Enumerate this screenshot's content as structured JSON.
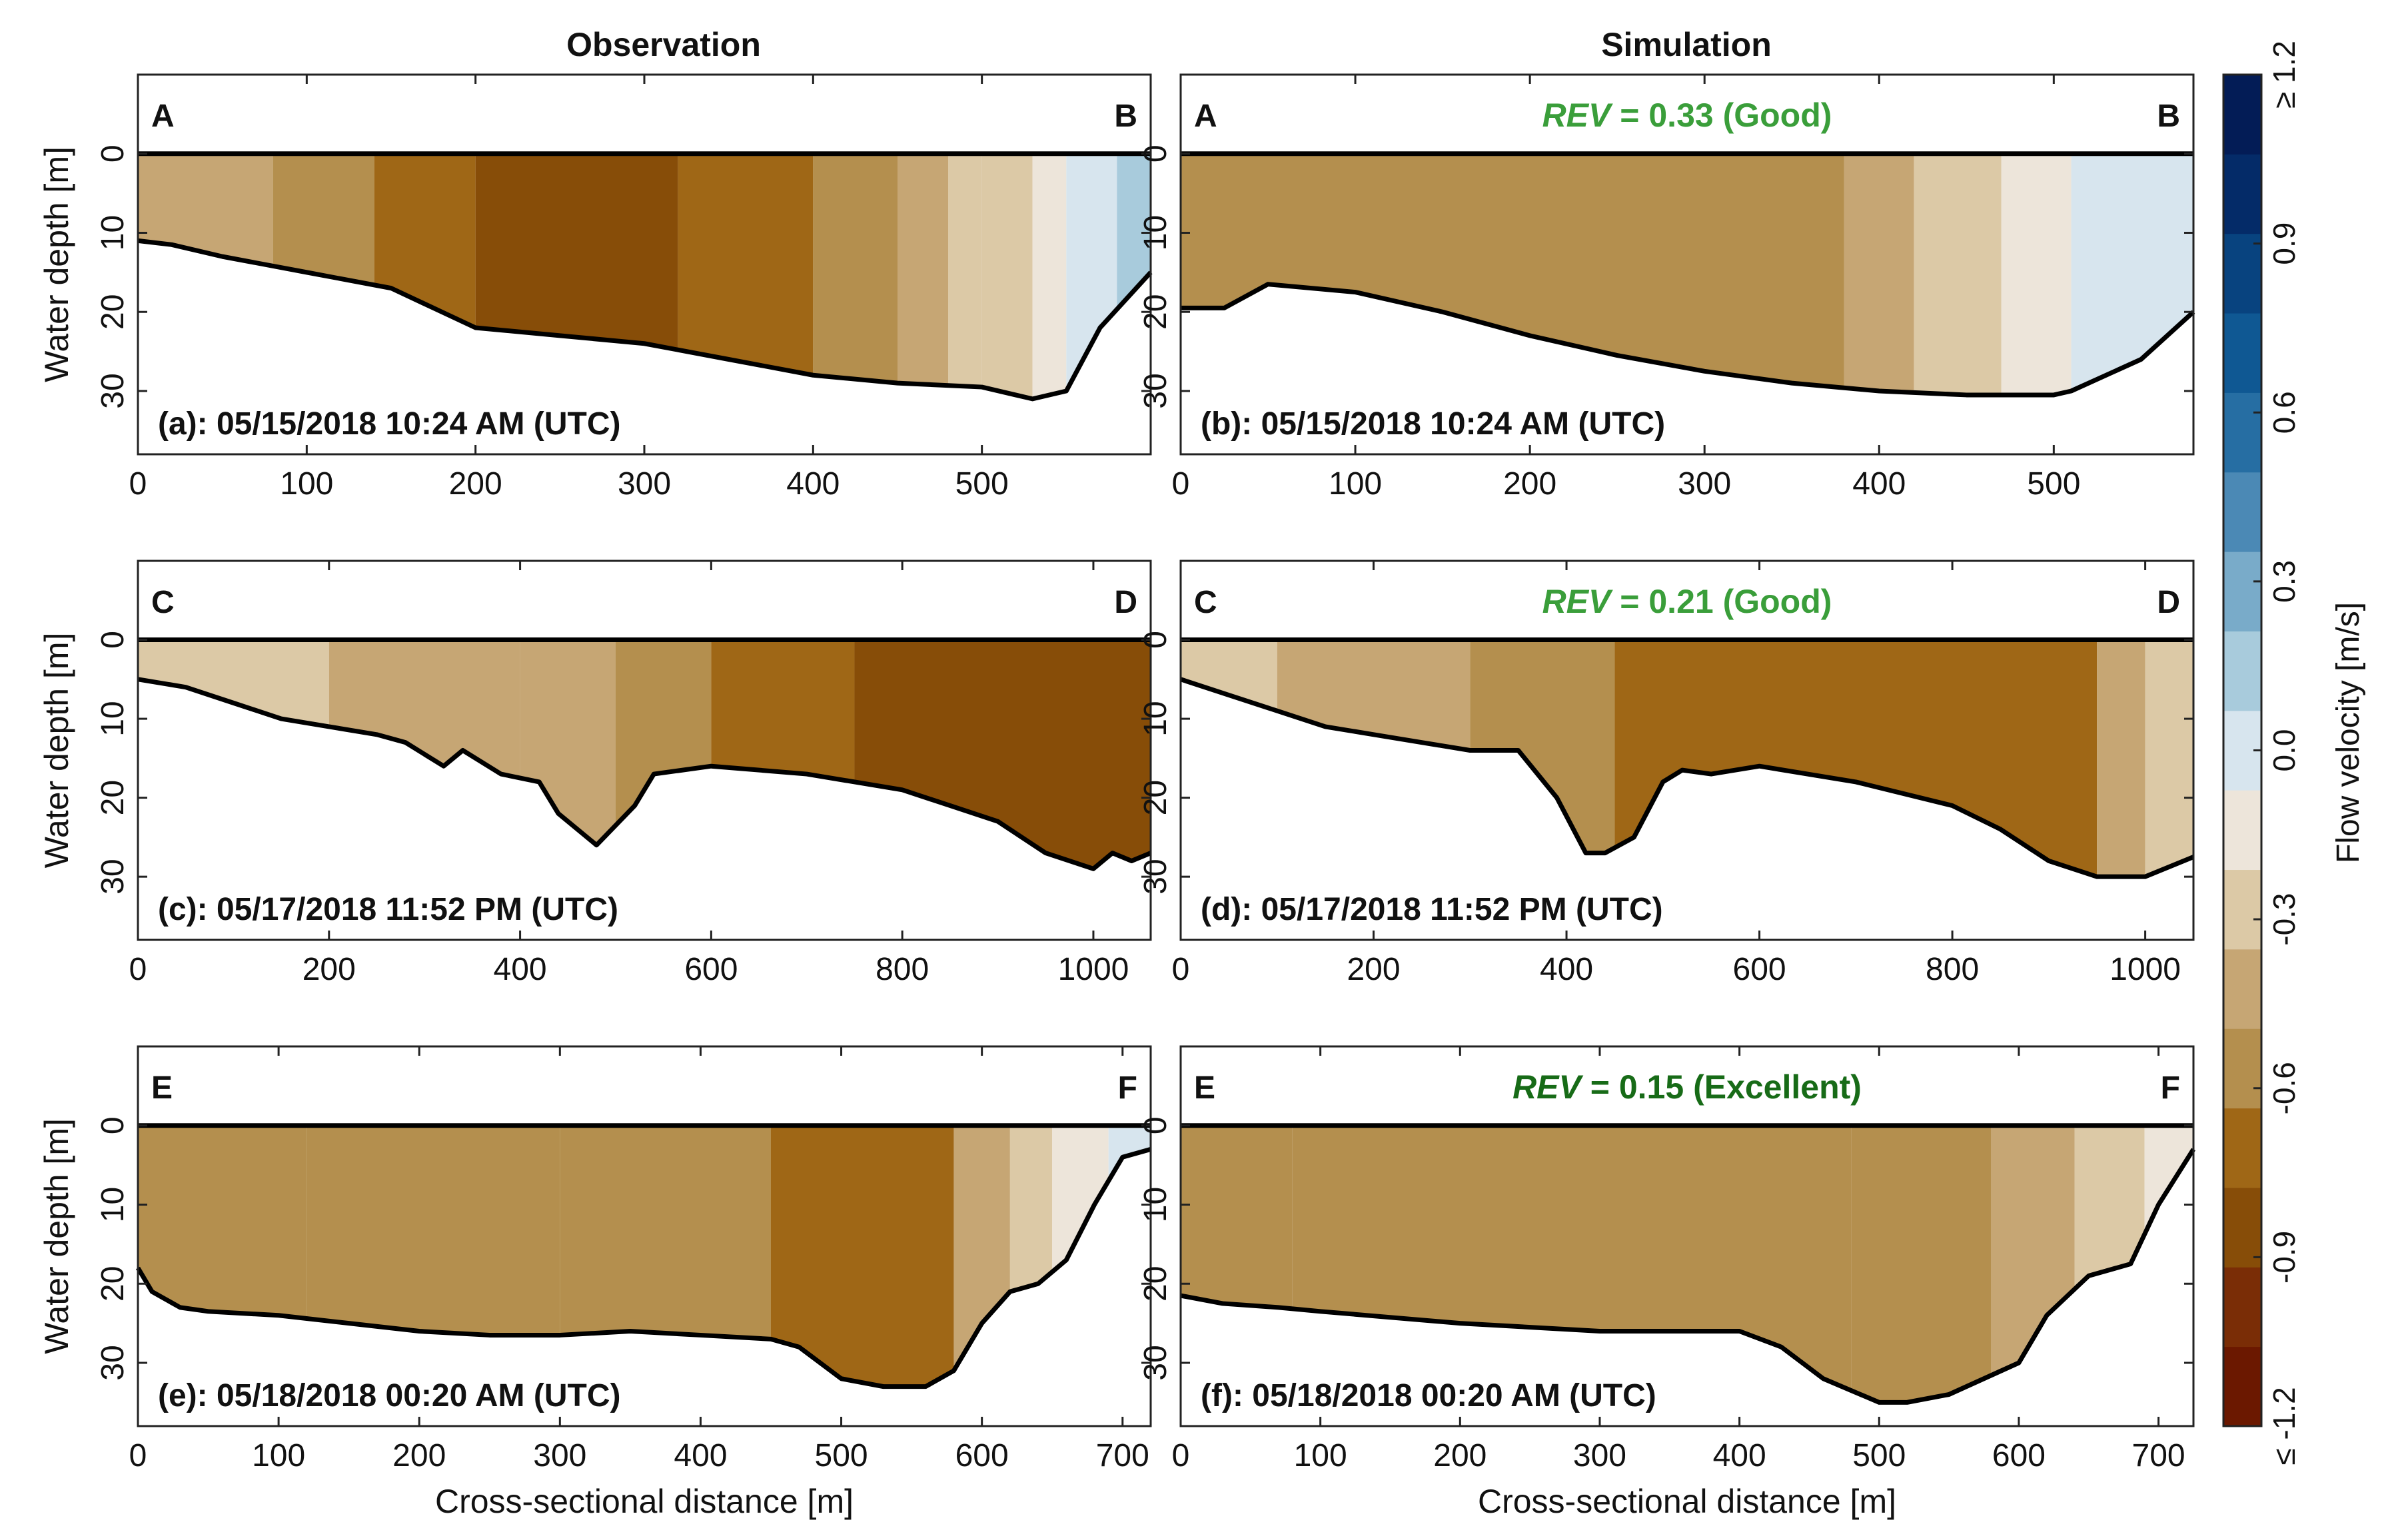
{
  "figure": {
    "col_titles": [
      "Observation",
      "Simulation"
    ],
    "colorbar": {
      "label": "Flow velocity [m/s]",
      "ticks": [
        "≤ -1.2",
        "-0.9",
        "-0.6",
        "-0.3",
        "0.0",
        "0.3",
        "0.6",
        "0.9",
        "≥ 1.2"
      ],
      "colors": [
        "#6b1800",
        "#7a2d06",
        "#874d08",
        "#9f6716",
        "#b48f4e",
        "#c6a674",
        "#dcc9a6",
        "#ede5da",
        "#d7e5ee",
        "#a8cbdc",
        "#79abc9",
        "#4b89b5",
        "#266ea3",
        "#0f5893",
        "#08437f",
        "#042b68",
        "#031c56"
      ]
    }
  },
  "chart_data": [
    {
      "type": "heatmap",
      "id": "a",
      "column": "Observation",
      "title": "(a): 05/15/2018 10:24 AM (UTC)",
      "left_label": "A",
      "right_label": "B",
      "xlabel": "",
      "ylabel": "Water depth [m]",
      "xlim": [
        0,
        600
      ],
      "ylim": [
        38,
        -10
      ],
      "xticks": [
        "0",
        "100",
        "200",
        "300",
        "400",
        "500"
      ],
      "yticks": [
        "0",
        "10",
        "20",
        "30"
      ],
      "bed": {
        "x": [
          0,
          20,
          50,
          100,
          150,
          180,
          200,
          250,
          300,
          350,
          400,
          450,
          500,
          530,
          550,
          570,
          600
        ],
        "depth": [
          11,
          11.5,
          13,
          15,
          17,
          20,
          22,
          23,
          24,
          26,
          28,
          29,
          29.5,
          31,
          30,
          22,
          15
        ]
      },
      "zones": [
        {
          "x0": 0,
          "x1": 80,
          "v": -0.45
        },
        {
          "x0": 80,
          "x1": 140,
          "v": -0.55
        },
        {
          "x0": 140,
          "x1": 200,
          "v": -0.65
        },
        {
          "x0": 200,
          "x1": 320,
          "v": -0.85
        },
        {
          "x0": 320,
          "x1": 400,
          "v": -0.65
        },
        {
          "x0": 400,
          "x1": 450,
          "v": -0.55
        },
        {
          "x0": 450,
          "x1": 480,
          "v": -0.45
        },
        {
          "x0": 480,
          "x1": 500,
          "v": -0.35
        },
        {
          "x0": 500,
          "x1": 530,
          "v": -0.25
        },
        {
          "x0": 530,
          "x1": 550,
          "v": -0.1
        },
        {
          "x0": 550,
          "x1": 580,
          "v": 0.05
        },
        {
          "x0": 580,
          "x1": 600,
          "v": 0.2
        }
      ]
    },
    {
      "type": "heatmap",
      "id": "b",
      "column": "Simulation",
      "title": "(b): 05/15/2018 10:24 AM (UTC)",
      "left_label": "A",
      "right_label": "B",
      "rev_prefix": "REV",
      "rev_text": " = 0.33 (Good)",
      "rev_color": "#3a9e3a",
      "xlabel": "",
      "ylabel": "",
      "xlim": [
        0,
        580
      ],
      "ylim": [
        38,
        -10
      ],
      "xticks": [
        "0",
        "100",
        "200",
        "300",
        "400",
        "500"
      ],
      "yticks": [
        "0",
        "10",
        "20",
        "30"
      ],
      "bed": {
        "x": [
          0,
          25,
          50,
          100,
          150,
          200,
          250,
          300,
          350,
          400,
          450,
          500,
          510,
          550,
          580
        ],
        "depth": [
          19.5,
          19.5,
          16.5,
          17.5,
          20,
          23,
          25.5,
          27.5,
          29,
          30,
          30.5,
          30.5,
          30,
          26,
          20
        ]
      },
      "zones": [
        {
          "x0": 0,
          "x1": 380,
          "v": -0.5
        },
        {
          "x0": 380,
          "x1": 420,
          "v": -0.4
        },
        {
          "x0": 420,
          "x1": 470,
          "v": -0.3
        },
        {
          "x0": 470,
          "x1": 510,
          "v": -0.1
        },
        {
          "x0": 510,
          "x1": 580,
          "v": 0.05
        }
      ]
    },
    {
      "type": "heatmap",
      "id": "c",
      "column": "Observation",
      "title": "(c): 05/17/2018 11:52 PM (UTC)",
      "left_label": "C",
      "right_label": "D",
      "xlabel": "",
      "ylabel": "Water depth [m]",
      "xlim": [
        0,
        1060
      ],
      "ylim": [
        38,
        -10
      ],
      "xticks": [
        "0",
        "200",
        "400",
        "600",
        "800",
        "1000"
      ],
      "yticks": [
        "0",
        "10",
        "20",
        "30"
      ],
      "bed": {
        "x": [
          0,
          50,
          100,
          150,
          200,
          250,
          280,
          320,
          340,
          380,
          420,
          440,
          480,
          520,
          540,
          600,
          700,
          800,
          850,
          900,
          950,
          1000,
          1020,
          1040,
          1060
        ],
        "depth": [
          5,
          6,
          8,
          10,
          11,
          12,
          13,
          16,
          14,
          17,
          18,
          22,
          26,
          21,
          17,
          16,
          17,
          19,
          21,
          23,
          27,
          29,
          27,
          28,
          27
        ]
      },
      "zones": [
        {
          "x0": 0,
          "x1": 200,
          "v": -0.35
        },
        {
          "x0": 200,
          "x1": 400,
          "v": -0.4
        },
        {
          "x0": 400,
          "x1": 500,
          "v": -0.45
        },
        {
          "x0": 500,
          "x1": 600,
          "v": -0.55
        },
        {
          "x0": 600,
          "x1": 750,
          "v": -0.65
        },
        {
          "x0": 750,
          "x1": 1060,
          "v": -0.8
        }
      ]
    },
    {
      "type": "heatmap",
      "id": "d",
      "column": "Simulation",
      "title": "(d): 05/17/2018 11:52 PM (UTC)",
      "left_label": "C",
      "right_label": "D",
      "rev_prefix": "REV",
      "rev_text": " = 0.21 (Good)",
      "rev_color": "#3a9e3a",
      "xlabel": "",
      "ylabel": "",
      "xlim": [
        0,
        1050
      ],
      "ylim": [
        38,
        -10
      ],
      "xticks": [
        "0",
        "200",
        "400",
        "600",
        "800",
        "1000"
      ],
      "yticks": [
        "0",
        "10",
        "20",
        "30"
      ],
      "bed": {
        "x": [
          0,
          50,
          100,
          150,
          200,
          250,
          300,
          350,
          390,
          420,
          440,
          470,
          500,
          520,
          550,
          600,
          700,
          800,
          850,
          900,
          950,
          1000,
          1050
        ],
        "depth": [
          5,
          7,
          9,
          11,
          12,
          13,
          14,
          14,
          20,
          27,
          27,
          25,
          18,
          16.5,
          17,
          16,
          18,
          21,
          24,
          28,
          30,
          30,
          27.5
        ]
      },
      "zones": [
        {
          "x0": 0,
          "x1": 100,
          "v": -0.35
        },
        {
          "x0": 100,
          "x1": 300,
          "v": -0.45
        },
        {
          "x0": 300,
          "x1": 450,
          "v": -0.55
        },
        {
          "x0": 450,
          "x1": 950,
          "v": -0.65
        },
        {
          "x0": 950,
          "x1": 1000,
          "v": -0.45
        },
        {
          "x0": 1000,
          "x1": 1050,
          "v": -0.3
        }
      ]
    },
    {
      "type": "heatmap",
      "id": "e",
      "column": "Observation",
      "title": "(e): 05/18/2018 00:20 AM (UTC)",
      "left_label": "E",
      "right_label": "F",
      "xlabel": "Cross-sectional distance [m]",
      "ylabel": "Water depth [m]",
      "xlim": [
        0,
        720
      ],
      "ylim": [
        38,
        -10
      ],
      "xticks": [
        "0",
        "100",
        "200",
        "300",
        "400",
        "500",
        "600",
        "700"
      ],
      "yticks": [
        "0",
        "10",
        "20",
        "30"
      ],
      "bed": {
        "x": [
          0,
          10,
          30,
          50,
          100,
          150,
          200,
          250,
          300,
          350,
          400,
          450,
          470,
          500,
          530,
          560,
          580,
          600,
          620,
          640,
          660,
          680,
          700,
          720
        ],
        "depth": [
          18,
          21,
          23,
          23.5,
          24,
          25,
          26,
          26.5,
          26.5,
          26,
          26.5,
          27,
          28,
          32,
          33,
          33,
          31,
          25,
          21,
          20,
          17,
          10,
          4,
          3
        ]
      },
      "zones": [
        {
          "x0": 0,
          "x1": 120,
          "v": -0.5
        },
        {
          "x0": 120,
          "x1": 300,
          "v": -0.55
        },
        {
          "x0": 300,
          "x1": 450,
          "v": -0.55
        },
        {
          "x0": 450,
          "x1": 580,
          "v": -0.65
        },
        {
          "x0": 580,
          "x1": 620,
          "v": -0.45
        },
        {
          "x0": 620,
          "x1": 650,
          "v": -0.3
        },
        {
          "x0": 650,
          "x1": 690,
          "v": -0.1
        },
        {
          "x0": 690,
          "x1": 720,
          "v": 0.05
        }
      ]
    },
    {
      "type": "heatmap",
      "id": "f",
      "column": "Simulation",
      "title": "(f): 05/18/2018 00:20 AM (UTC)",
      "left_label": "E",
      "right_label": "F",
      "rev_prefix": "REV",
      "rev_text": " = 0.15 (Excellent)",
      "rev_color": "#176b17",
      "xlabel": "Cross-sectional distance [m]",
      "ylabel": "",
      "xlim": [
        0,
        725
      ],
      "ylim": [
        38,
        -10
      ],
      "xticks": [
        "0",
        "100",
        "200",
        "300",
        "400",
        "500",
        "600",
        "700"
      ],
      "yticks": [
        "0",
        "10",
        "20",
        "30"
      ],
      "bed": {
        "x": [
          0,
          30,
          70,
          100,
          200,
          300,
          350,
          400,
          430,
          460,
          500,
          520,
          550,
          600,
          620,
          650,
          680,
          700,
          725
        ],
        "depth": [
          21.5,
          22.5,
          23,
          23.5,
          25,
          26,
          26,
          26,
          28,
          32,
          35,
          35,
          34,
          30,
          24,
          19,
          17.5,
          10,
          3
        ]
      },
      "zones": [
        {
          "x0": 0,
          "x1": 80,
          "v": -0.5
        },
        {
          "x0": 80,
          "x1": 480,
          "v": -0.6
        },
        {
          "x0": 480,
          "x1": 580,
          "v": -0.5
        },
        {
          "x0": 580,
          "x1": 640,
          "v": -0.4
        },
        {
          "x0": 640,
          "x1": 690,
          "v": -0.3
        },
        {
          "x0": 690,
          "x1": 725,
          "v": -0.15
        }
      ]
    }
  ]
}
